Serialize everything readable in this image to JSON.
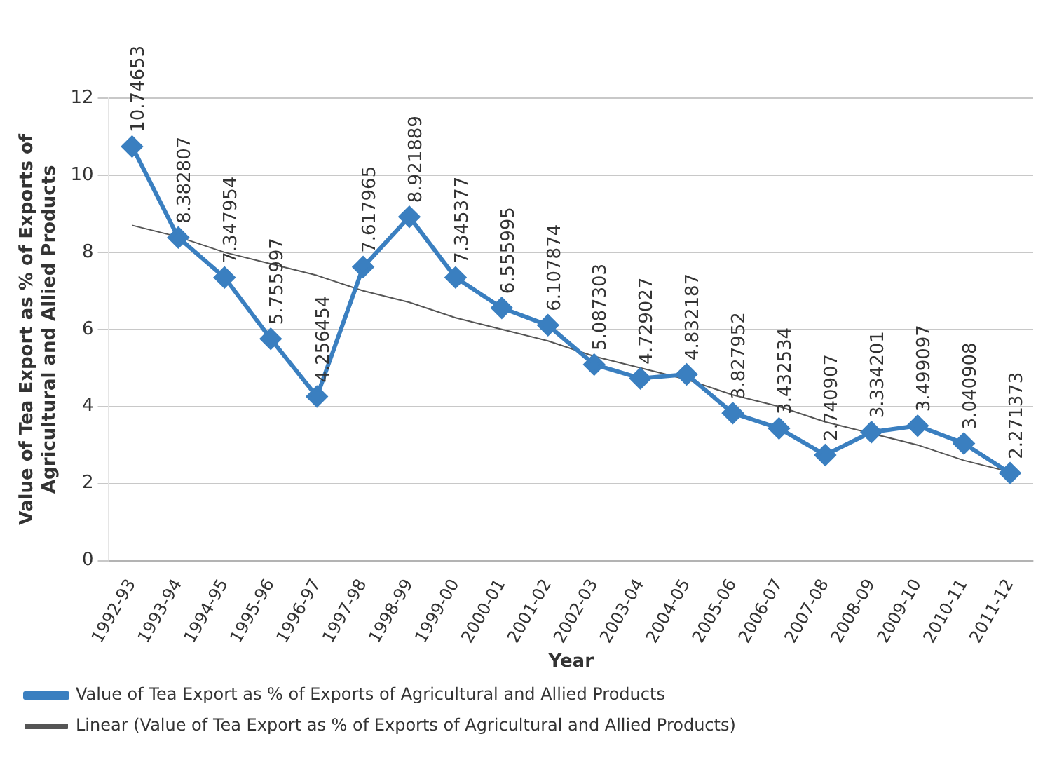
{
  "chart_data": {
    "type": "line",
    "xlabel": "Year",
    "ylabel": "Value of Tea Export as % of Exports of Agricultural and Allied Products",
    "categories": [
      "1992-93",
      "1993-94",
      "1994-95",
      "1995-96",
      "1996-97",
      "1997-98",
      "1998-99",
      "1999-00",
      "2000-01",
      "2001-02",
      "2002-03",
      "2003-04",
      "2004-05",
      "2005-06",
      "2006-07",
      "2007-08",
      "2008-09",
      "2009-10",
      "2010-11",
      "2011-12"
    ],
    "series": [
      {
        "name": "Value of Tea Export as % of Exports of Agricultural and Allied Products",
        "color": "#3a7fc0",
        "marker": "diamond",
        "data_labels": true,
        "values": [
          10.74653,
          8.382807,
          7.347954,
          5.755997,
          4.256454,
          7.617965,
          8.921889,
          7.345377,
          6.555995,
          6.107874,
          5.087303,
          4.729027,
          4.832187,
          3.827952,
          3.432534,
          2.740907,
          3.334201,
          3.499097,
          3.040908,
          2.271373
        ]
      },
      {
        "name": "Linear (Value of Tea Export as % of Exports of Agricultural and Allied Products)",
        "color": "#555555",
        "marker": "none",
        "values": [
          8.7,
          8.4,
          8.0,
          7.7,
          7.4,
          7.0,
          6.7,
          6.3,
          6.0,
          5.7,
          5.3,
          5.0,
          4.7,
          4.3,
          4.0,
          3.6,
          3.3,
          3.0,
          2.6,
          2.3
        ]
      }
    ],
    "ylim": [
      0,
      12
    ],
    "yticks": [
      0,
      2,
      4,
      6,
      8,
      10,
      12
    ],
    "grid": "y",
    "legend": "bottom"
  }
}
